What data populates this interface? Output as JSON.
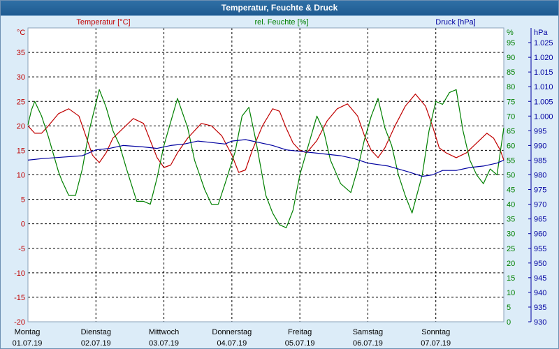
{
  "window": {
    "title": "Temperatur, Feuchte & Druck"
  },
  "colors": {
    "temperature": "#c00000",
    "humidity": "#008000",
    "pressure": "#0000a0",
    "background": "#dcecf8",
    "grid": "#000000"
  },
  "chart_data": {
    "type": "line",
    "title": "Temperatur, Feuchte & Druck",
    "grid": true,
    "x": {
      "days": [
        {
          "weekday": "Montag",
          "date": "01.07.19"
        },
        {
          "weekday": "Dienstag",
          "date": "02.07.19"
        },
        {
          "weekday": "Mittwoch",
          "date": "03.07.19"
        },
        {
          "weekday": "Donnerstag",
          "date": "04.07.19"
        },
        {
          "weekday": "Freitag",
          "date": "05.07.19"
        },
        {
          "weekday": "Samstag",
          "date": "06.07.19"
        },
        {
          "weekday": "Sonntag",
          "date": "07.07.19"
        }
      ],
      "range_days": [
        0,
        7
      ]
    },
    "axes": {
      "left": {
        "label": "Temperatur [°C]",
        "unit": "°C",
        "min": -20,
        "max": 40,
        "ticks": [
          -20,
          -15,
          -10,
          -5,
          0,
          5,
          10,
          15,
          20,
          25,
          30,
          35
        ]
      },
      "right1": {
        "label": "rel. Feuchte [%]",
        "unit": "%",
        "min": 0,
        "max": 100,
        "ticks": [
          0,
          5,
          10,
          15,
          20,
          25,
          30,
          35,
          40,
          45,
          50,
          55,
          60,
          65,
          70,
          75,
          80,
          85,
          90,
          95
        ]
      },
      "right2": {
        "label": "Druck [hPa]",
        "unit": "hPa",
        "min": 930,
        "max": 1030,
        "ticks": [
          "930",
          "935",
          "940",
          "945",
          "950",
          "955",
          "960",
          "965",
          "970",
          "975",
          "980",
          "985",
          "990",
          "995",
          "1.000",
          "1.005",
          "1.010",
          "1.015",
          "1.020",
          "1.025"
        ]
      }
    },
    "series": [
      {
        "name": "Temperatur [°C]",
        "axis": "left",
        "color": "#c00000",
        "points": [
          [
            0,
            20
          ],
          [
            0.1,
            18.5
          ],
          [
            0.2,
            18.5
          ],
          [
            0.3,
            20
          ],
          [
            0.45,
            22.5
          ],
          [
            0.6,
            23.5
          ],
          [
            0.75,
            22
          ],
          [
            0.85,
            18
          ],
          [
            0.95,
            14
          ],
          [
            1.05,
            12.5
          ],
          [
            1.15,
            14.5
          ],
          [
            1.25,
            17.5
          ],
          [
            1.4,
            19.5
          ],
          [
            1.55,
            21.5
          ],
          [
            1.7,
            20.5
          ],
          [
            1.8,
            17
          ],
          [
            1.9,
            13.5
          ],
          [
            2.0,
            11.5
          ],
          [
            2.1,
            12
          ],
          [
            2.2,
            14.5
          ],
          [
            2.35,
            17.5
          ],
          [
            2.55,
            20.5
          ],
          [
            2.7,
            20
          ],
          [
            2.85,
            18
          ],
          [
            3.0,
            14
          ],
          [
            3.1,
            10.5
          ],
          [
            3.2,
            11
          ],
          [
            3.3,
            15
          ],
          [
            3.45,
            20
          ],
          [
            3.6,
            23.5
          ],
          [
            3.7,
            23
          ],
          [
            3.8,
            19.5
          ],
          [
            3.9,
            16.5
          ],
          [
            4.0,
            15
          ],
          [
            4.1,
            14.5
          ],
          [
            4.25,
            17
          ],
          [
            4.4,
            21
          ],
          [
            4.55,
            23.5
          ],
          [
            4.7,
            24.5
          ],
          [
            4.85,
            22
          ],
          [
            4.95,
            18
          ],
          [
            5.05,
            15
          ],
          [
            5.15,
            13.5
          ],
          [
            5.25,
            15.5
          ],
          [
            5.4,
            20
          ],
          [
            5.55,
            24
          ],
          [
            5.7,
            26.5
          ],
          [
            5.85,
            24
          ],
          [
            5.95,
            20
          ],
          [
            6.05,
            15.5
          ],
          [
            6.15,
            14.5
          ],
          [
            6.3,
            13.5
          ],
          [
            6.45,
            14.5
          ],
          [
            6.6,
            16.5
          ],
          [
            6.75,
            18.5
          ],
          [
            6.85,
            17.5
          ],
          [
            6.95,
            15
          ],
          [
            7.0,
            13
          ]
        ]
      },
      {
        "name": "rel. Feuchte [%]",
        "axis": "right1",
        "color": "#008000",
        "points": [
          [
            0,
            67
          ],
          [
            0.05,
            72
          ],
          [
            0.1,
            75
          ],
          [
            0.2,
            70
          ],
          [
            0.3,
            63
          ],
          [
            0.45,
            51
          ],
          [
            0.5,
            48
          ],
          [
            0.6,
            43
          ],
          [
            0.7,
            43
          ],
          [
            0.8,
            52
          ],
          [
            0.9,
            65
          ],
          [
            1.05,
            79
          ],
          [
            1.15,
            73
          ],
          [
            1.25,
            65
          ],
          [
            1.35,
            60
          ],
          [
            1.45,
            52
          ],
          [
            1.6,
            41
          ],
          [
            1.7,
            41
          ],
          [
            1.8,
            40
          ],
          [
            1.9,
            49
          ],
          [
            2.0,
            60
          ],
          [
            2.1,
            68
          ],
          [
            2.2,
            76
          ],
          [
            2.35,
            66
          ],
          [
            2.45,
            55
          ],
          [
            2.6,
            45
          ],
          [
            2.7,
            40
          ],
          [
            2.8,
            40
          ],
          [
            2.9,
            47
          ],
          [
            3.05,
            58
          ],
          [
            3.15,
            70
          ],
          [
            3.25,
            73
          ],
          [
            3.35,
            62
          ],
          [
            3.5,
            43
          ],
          [
            3.6,
            37
          ],
          [
            3.7,
            33
          ],
          [
            3.8,
            32
          ],
          [
            3.9,
            38
          ],
          [
            4.0,
            50
          ],
          [
            4.15,
            62
          ],
          [
            4.25,
            70
          ],
          [
            4.35,
            65
          ],
          [
            4.45,
            55
          ],
          [
            4.6,
            47
          ],
          [
            4.75,
            44
          ],
          [
            4.85,
            52
          ],
          [
            4.95,
            62
          ],
          [
            5.05,
            70
          ],
          [
            5.15,
            76
          ],
          [
            5.25,
            66
          ],
          [
            5.35,
            60
          ],
          [
            5.45,
            50
          ],
          [
            5.55,
            43
          ],
          [
            5.65,
            37
          ],
          [
            5.8,
            50
          ],
          [
            5.9,
            65
          ],
          [
            6.0,
            75
          ],
          [
            6.1,
            74
          ],
          [
            6.2,
            78
          ],
          [
            6.3,
            79
          ],
          [
            6.4,
            65
          ],
          [
            6.5,
            55
          ],
          [
            6.6,
            50
          ],
          [
            6.7,
            47
          ],
          [
            6.8,
            52
          ],
          [
            6.9,
            50
          ],
          [
            7.0,
            66
          ]
        ]
      },
      {
        "name": "Druck [hPa]",
        "axis": "right2",
        "color": "#0000a0",
        "points": [
          [
            0,
            985
          ],
          [
            0.2,
            985.5
          ],
          [
            0.5,
            986
          ],
          [
            0.8,
            986.5
          ],
          [
            1.0,
            988.5
          ],
          [
            1.2,
            989
          ],
          [
            1.4,
            990
          ],
          [
            1.7,
            989.5
          ],
          [
            1.9,
            989
          ],
          [
            2.1,
            990
          ],
          [
            2.3,
            990.5
          ],
          [
            2.5,
            991.5
          ],
          [
            2.7,
            991
          ],
          [
            2.9,
            990.5
          ],
          [
            3.0,
            991.5
          ],
          [
            3.2,
            992
          ],
          [
            3.4,
            991
          ],
          [
            3.6,
            990
          ],
          [
            3.8,
            988.5
          ],
          [
            4.0,
            988
          ],
          [
            4.2,
            987.5
          ],
          [
            4.4,
            987
          ],
          [
            4.6,
            986.5
          ],
          [
            4.8,
            985.5
          ],
          [
            5.0,
            984
          ],
          [
            5.3,
            983
          ],
          [
            5.6,
            981
          ],
          [
            5.8,
            979.5
          ],
          [
            5.95,
            980
          ],
          [
            6.1,
            981.5
          ],
          [
            6.3,
            981.5
          ],
          [
            6.5,
            982.5
          ],
          [
            6.7,
            983
          ],
          [
            6.9,
            984
          ],
          [
            7.0,
            985
          ]
        ]
      }
    ]
  }
}
